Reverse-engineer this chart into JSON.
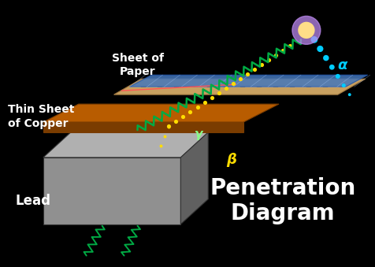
{
  "bg_color": "#000000",
  "title": "Penetration\nDiagram",
  "title_color": "#ffffff",
  "title_fontsize": 20,
  "label_lead": "Lead",
  "label_copper": "Thin Sheet\nof Copper",
  "label_paper": "Sheet of\nPaper",
  "label_alpha": "α",
  "label_beta": "β",
  "label_gamma": "γ",
  "green_color": "#00aa44",
  "yellow_color": "#ffdd00",
  "cyan_color": "#00ccff",
  "lead_color": "#909090",
  "lead_top_color": "#b0b0b0",
  "lead_side_color": "#606060",
  "copper_color": "#b85c00",
  "copper_dark": "#7a3c00",
  "paper_tan_color": "#c8a060",
  "paper_blue_color": "#4477bb",
  "source_outer": "#bb88ee",
  "source_inner": "#ffdd88"
}
